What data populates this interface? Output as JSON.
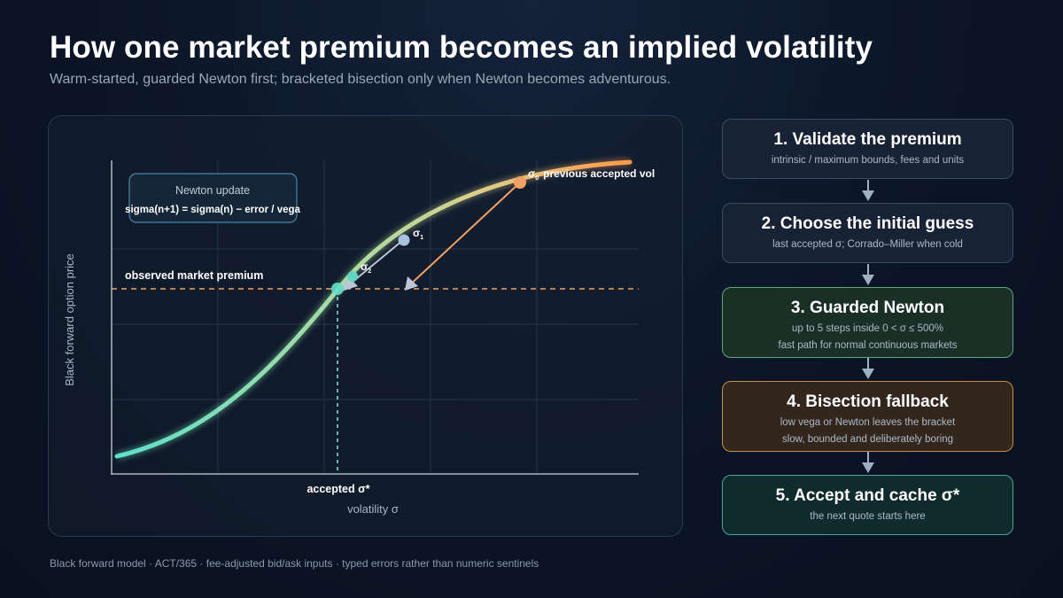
{
  "header": {
    "title": "How one market premium becomes an implied volatility",
    "subtitle": "Warm-started, guarded Newton first; bracketed bisection only when Newton becomes adventurous."
  },
  "chart": {
    "y_axis_label": "Black forward option price",
    "x_axis_label": "volatility σ",
    "premium_label": "observed market premium",
    "accepted_label": "accepted σ*",
    "formula_box": {
      "title": "Newton update",
      "formula": "sigma(n+1) = sigma(n) − error / vega"
    },
    "iterates": [
      {
        "symbol": "σ",
        "subscript": "0",
        "note": "previous accepted vol"
      },
      {
        "symbol": "σ",
        "subscript": "1",
        "note": ""
      },
      {
        "symbol": "σ",
        "subscript": "2",
        "note": ""
      }
    ],
    "colors": {
      "curve_low": "#5fe0c9",
      "curve_high": "#ff9a4a",
      "premium_line": "#f0a561",
      "accepted_line": "#6fe3cf",
      "sigma0": "#f4a261",
      "sigma1": "#a7c3de",
      "sigma2": "#5fd6c0"
    }
  },
  "steps": [
    {
      "title": "1. Validate the premium",
      "lines": [
        "intrinsic / maximum bounds, fees and units"
      ]
    },
    {
      "title": "2. Choose the initial guess",
      "lines": [
        "last accepted σ; Corrado–Miller when cold"
      ]
    },
    {
      "title": "3. Guarded Newton",
      "lines": [
        "up to 5 steps inside 0 < σ ≤ 500%",
        "fast path for normal continuous markets"
      ]
    },
    {
      "title": "4. Bisection fallback",
      "lines": [
        "low vega or Newton leaves the bracket",
        "slow, bounded and deliberately boring"
      ]
    },
    {
      "title": "5. Accept and cache σ*",
      "lines": [
        "the next quote starts here"
      ]
    }
  ],
  "footer": "Black forward model · ACT/365 · fee-adjusted bid/ask inputs · typed errors rather than numeric sentinels"
}
